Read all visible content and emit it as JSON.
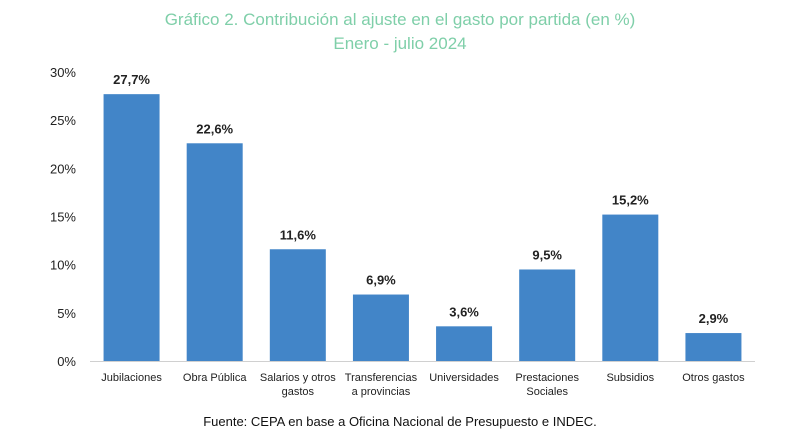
{
  "chart_data": {
    "type": "bar",
    "title": "Gráfico 2. Contribución al ajuste en el gasto por partida (en %)",
    "subtitle": "Enero - julio 2024",
    "categories": [
      [
        "Jubilaciones"
      ],
      [
        "Obra Pública"
      ],
      [
        "Salarios y otros",
        "gastos"
      ],
      [
        "Transferencias",
        "a provincias"
      ],
      [
        "Universidades"
      ],
      [
        "Prestaciones",
        "Sociales"
      ],
      [
        "Subsidios"
      ],
      [
        "Otros gastos"
      ]
    ],
    "values": [
      27.7,
      22.6,
      11.6,
      6.9,
      3.6,
      9.5,
      15.2,
      2.9
    ],
    "value_labels": [
      "27,7%",
      "22,6%",
      "11,6%",
      "6,9%",
      "3,6%",
      "9,5%",
      "15,2%",
      "2,9%"
    ],
    "ylim": [
      0,
      30
    ],
    "yticks": [
      0,
      5,
      10,
      15,
      20,
      25,
      30
    ],
    "ytick_labels": [
      "0%",
      "5%",
      "10%",
      "15%",
      "20%",
      "25%",
      "30%"
    ],
    "bar_color": "#4285c8",
    "xlabel": "",
    "ylabel": ""
  },
  "source": "Fuente: CEPA en base a Oficina Nacional de Presupuesto e INDEC."
}
